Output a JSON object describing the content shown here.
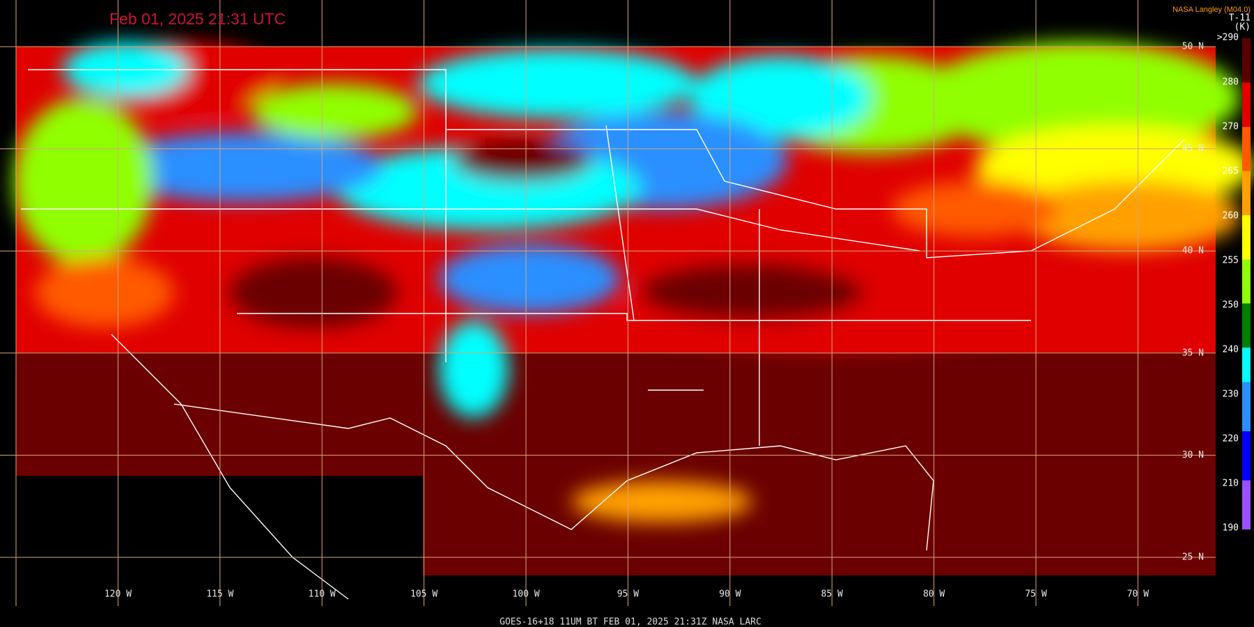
{
  "header": {
    "title": "Feb 01, 2025 21:31 UTC",
    "source": "NASA Langley (M04.0)",
    "channel": "T-11",
    "unit": "(K)"
  },
  "latitude_labels": [
    "50 N",
    "45 N",
    "40 N",
    "35 N",
    "30 N",
    "25 N"
  ],
  "longitude_labels": [
    "120 W",
    "115 W",
    "110 W",
    "105 W",
    "100 W",
    "95 W",
    "90 W",
    "85 W",
    "80 W",
    "75 W",
    "70 W"
  ],
  "colorbar_labels": [
    ">290",
    "280",
    "270",
    "265",
    "260",
    "255",
    "250",
    "240",
    "230",
    "220",
    "210",
    "190"
  ],
  "footer": "GOES-16+18  11UM BT  FEB 01, 2025 21:31Z  NASA LARC"
}
